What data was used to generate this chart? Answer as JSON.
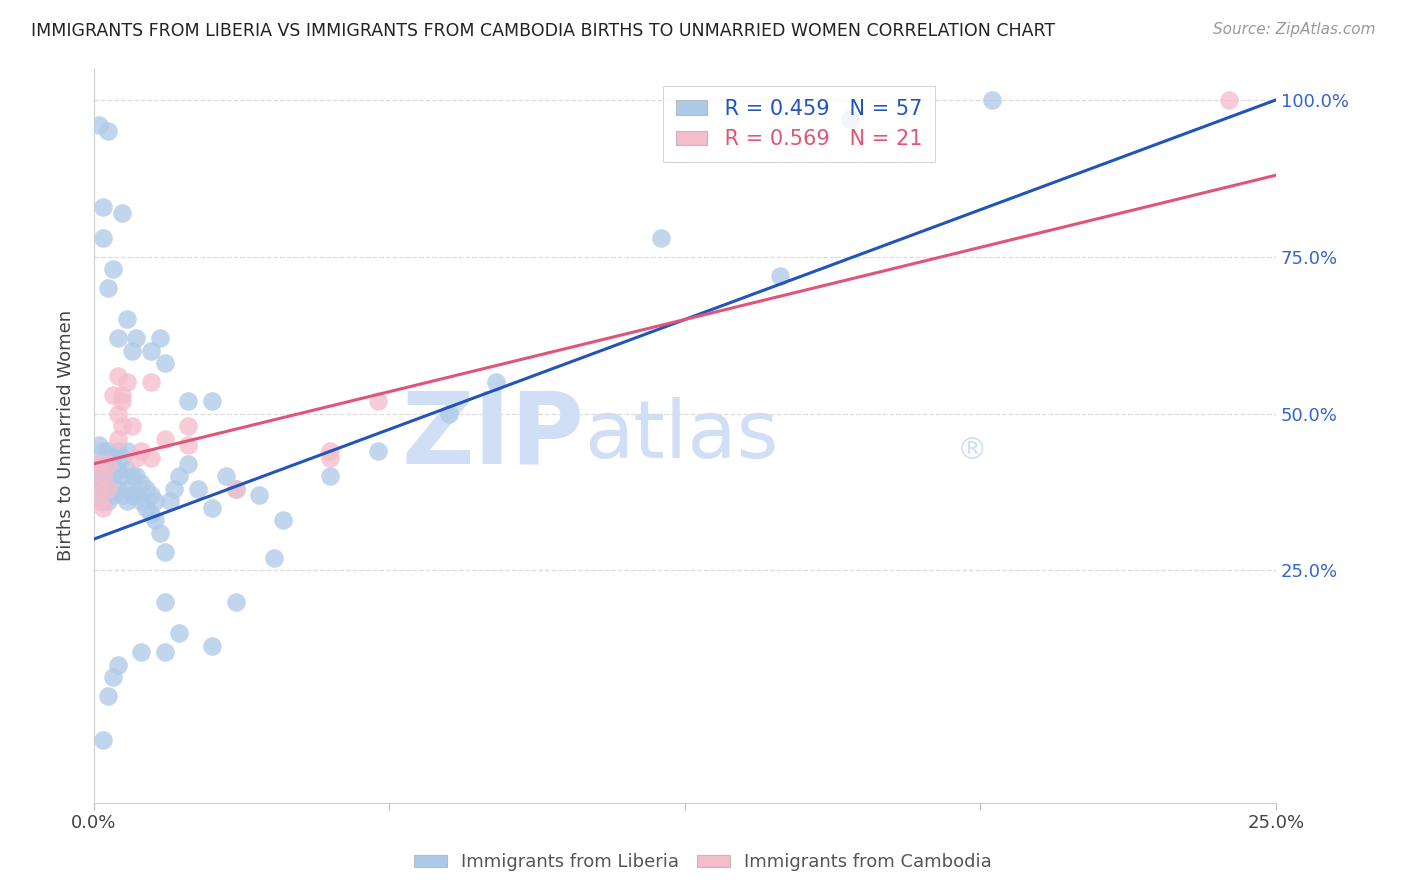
{
  "title": "IMMIGRANTS FROM LIBERIA VS IMMIGRANTS FROM CAMBODIA BIRTHS TO UNMARRIED WOMEN CORRELATION CHART",
  "source": "Source: ZipAtlas.com",
  "ylabel": "Births to Unmarried Women",
  "legend1_r": "0.459",
  "legend1_n": "57",
  "legend2_r": "0.569",
  "legend2_n": "21",
  "legend1_label": "Immigrants from Liberia",
  "legend2_label": "Immigrants from Cambodia",
  "blue_color": "#adc9e8",
  "pink_color": "#f5bccb",
  "blue_line_color": "#2255bb",
  "pink_line_color": "#e05575",
  "xlim": [
    0.0,
    0.25
  ],
  "ylim": [
    -0.12,
    1.05
  ],
  "liberia_x": [
    0.001,
    0.001,
    0.001,
    0.001,
    0.002,
    0.002,
    0.002,
    0.002,
    0.002,
    0.003,
    0.003,
    0.003,
    0.003,
    0.003,
    0.004,
    0.004,
    0.004,
    0.005,
    0.005,
    0.005,
    0.006,
    0.006,
    0.006,
    0.007,
    0.007,
    0.007,
    0.007,
    0.008,
    0.008,
    0.009,
    0.009,
    0.01,
    0.01,
    0.011,
    0.011,
    0.012,
    0.012,
    0.013,
    0.013,
    0.014,
    0.015,
    0.016,
    0.017,
    0.018,
    0.02,
    0.022,
    0.025,
    0.028,
    0.03,
    0.035,
    0.038,
    0.04,
    0.05,
    0.06,
    0.075,
    0.085,
    0.16
  ],
  "liberia_y": [
    0.38,
    0.4,
    0.42,
    0.45,
    0.36,
    0.38,
    0.4,
    0.42,
    0.44,
    0.36,
    0.38,
    0.4,
    0.42,
    0.44,
    0.37,
    0.4,
    0.43,
    0.38,
    0.41,
    0.44,
    0.37,
    0.4,
    0.43,
    0.36,
    0.38,
    0.41,
    0.44,
    0.37,
    0.4,
    0.37,
    0.4,
    0.36,
    0.39,
    0.35,
    0.38,
    0.34,
    0.37,
    0.33,
    0.36,
    0.31,
    0.28,
    0.36,
    0.38,
    0.4,
    0.42,
    0.38,
    0.35,
    0.4,
    0.38,
    0.37,
    0.27,
    0.33,
    0.4,
    0.44,
    0.5,
    0.55,
    0.97
  ],
  "liberia_high_x": [
    0.001,
    0.002,
    0.002,
    0.003,
    0.003,
    0.004,
    0.005,
    0.006,
    0.007,
    0.008,
    0.009,
    0.012,
    0.014,
    0.015,
    0.015,
    0.02,
    0.025,
    0.12,
    0.145,
    0.19
  ],
  "liberia_high_y": [
    0.96,
    0.83,
    0.78,
    0.95,
    0.7,
    0.73,
    0.62,
    0.82,
    0.65,
    0.6,
    0.62,
    0.6,
    0.62,
    0.58,
    0.2,
    0.52,
    0.52,
    0.78,
    0.72,
    1.0
  ],
  "liberia_low_x": [
    0.002,
    0.003,
    0.004,
    0.005,
    0.01,
    0.015,
    0.018,
    0.025,
    0.03
  ],
  "liberia_low_y": [
    -0.02,
    0.05,
    0.08,
    0.1,
    0.12,
    0.12,
    0.15,
    0.13,
    0.2
  ],
  "cambodia_x": [
    0.001,
    0.001,
    0.002,
    0.002,
    0.003,
    0.003,
    0.004,
    0.005,
    0.005,
    0.006,
    0.006,
    0.007,
    0.008,
    0.009,
    0.01,
    0.012,
    0.015,
    0.02,
    0.05,
    0.06,
    0.24
  ],
  "cambodia_y": [
    0.36,
    0.38,
    0.35,
    0.4,
    0.38,
    0.42,
    0.53,
    0.46,
    0.5,
    0.48,
    0.52,
    0.55,
    0.48,
    0.43,
    0.44,
    0.43,
    0.46,
    0.45,
    0.43,
    0.52,
    1.0
  ],
  "cambodia_outlier_x": [
    0.001,
    0.005,
    0.006,
    0.012,
    0.02,
    0.03,
    0.05
  ],
  "cambodia_outlier_y": [
    0.42,
    0.56,
    0.53,
    0.55,
    0.48,
    0.38,
    0.44
  ],
  "watermark_zip": "ZIP",
  "watermark_atlas": "atlas",
  "watermark_color": "#d0dff5",
  "background_color": "#ffffff",
  "grid_color": "#dddddd"
}
